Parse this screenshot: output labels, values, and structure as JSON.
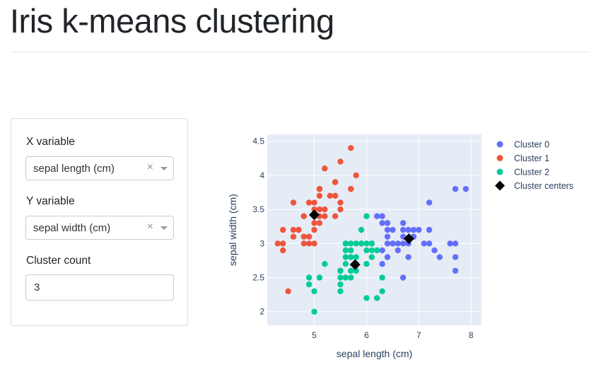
{
  "page": {
    "title": "Iris k-means clustering"
  },
  "controls": {
    "x_label": "X variable",
    "x_value": "sepal length (cm)",
    "y_label": "Y variable",
    "y_value": "sepal width (cm)",
    "clear_glyph": "×",
    "count_label": "Cluster count",
    "count_value": "3"
  },
  "chart_data": {
    "type": "scatter",
    "xlabel": "sepal length (cm)",
    "ylabel": "sepal width (cm)",
    "xlim": [
      4.1,
      8.2
    ],
    "ylim": [
      1.8,
      4.6
    ],
    "xticks": [
      5,
      6,
      7,
      8
    ],
    "yticks": [
      2,
      2.5,
      3,
      3.5,
      4,
      4.5
    ],
    "grid": true,
    "legend_position": "right",
    "plot_bgcolor": "#e5ecf6",
    "series": [
      {
        "name": "Cluster 0",
        "color": "#636efa",
        "points": [
          [
            6.2,
            3.4
          ],
          [
            6.3,
            3.4
          ],
          [
            6.4,
            3.3
          ],
          [
            6.7,
            3.3
          ],
          [
            6.3,
            3.3
          ],
          [
            6.5,
            3.2
          ],
          [
            6.4,
            3.2
          ],
          [
            6.9,
            3.2
          ],
          [
            6.8,
            3.2
          ],
          [
            7.0,
            3.2
          ],
          [
            7.2,
            3.2
          ],
          [
            6.9,
            3.1
          ],
          [
            6.7,
            3.1
          ],
          [
            6.4,
            3.1
          ],
          [
            6.6,
            3.0
          ],
          [
            6.5,
            3.0
          ],
          [
            6.7,
            3.0
          ],
          [
            6.8,
            3.0
          ],
          [
            7.1,
            3.0
          ],
          [
            7.2,
            3.0
          ],
          [
            7.6,
            3.0
          ],
          [
            7.7,
            3.0
          ],
          [
            6.1,
            3.0
          ],
          [
            6.4,
            3.0
          ],
          [
            6.3,
            2.9
          ],
          [
            6.6,
            2.9
          ],
          [
            7.3,
            2.9
          ],
          [
            6.4,
            2.8
          ],
          [
            6.8,
            2.8
          ],
          [
            7.7,
            2.8
          ],
          [
            7.4,
            2.8
          ],
          [
            6.3,
            2.7
          ],
          [
            6.7,
            2.5
          ],
          [
            7.7,
            2.6
          ],
          [
            7.2,
            3.6
          ],
          [
            7.7,
            3.8
          ],
          [
            7.9,
            3.8
          ],
          [
            6.7,
            3.2
          ],
          [
            6.5,
            3.0
          ],
          [
            6.9,
            3.1
          ]
        ]
      },
      {
        "name": "Cluster 1",
        "color": "#ef553b",
        "points": [
          [
            5.7,
            4.4
          ],
          [
            5.8,
            4.0
          ],
          [
            5.2,
            4.1
          ],
          [
            5.5,
            4.2
          ],
          [
            5.4,
            3.9
          ],
          [
            5.7,
            3.8
          ],
          [
            5.1,
            3.8
          ],
          [
            5.3,
            3.7
          ],
          [
            5.2,
            3.5
          ],
          [
            5.4,
            3.7
          ],
          [
            5.1,
            3.7
          ],
          [
            5.1,
            3.5
          ],
          [
            5.0,
            3.6
          ],
          [
            5.4,
            3.4
          ],
          [
            5.1,
            3.3
          ],
          [
            4.6,
            3.6
          ],
          [
            4.8,
            3.4
          ],
          [
            5.0,
            3.5
          ],
          [
            4.9,
            3.6
          ],
          [
            5.0,
            3.4
          ],
          [
            4.7,
            3.2
          ],
          [
            4.6,
            3.1
          ],
          [
            4.4,
            3.0
          ],
          [
            4.3,
            3.0
          ],
          [
            4.4,
            2.9
          ],
          [
            4.8,
            3.0
          ],
          [
            4.9,
            3.0
          ],
          [
            4.8,
            3.1
          ],
          [
            4.9,
            3.1
          ],
          [
            5.0,
            3.0
          ],
          [
            4.6,
            3.2
          ],
          [
            5.0,
            3.2
          ],
          [
            5.1,
            3.4
          ],
          [
            5.2,
            3.4
          ],
          [
            5.5,
            3.5
          ],
          [
            5.4,
            3.9
          ],
          [
            5.7,
            3.8
          ],
          [
            4.4,
            3.2
          ],
          [
            4.5,
            2.3
          ],
          [
            4.8,
            3.4
          ],
          [
            5.0,
            3.3
          ],
          [
            5.5,
            3.6
          ],
          [
            4.7,
            3.2
          ],
          [
            5.1,
            3.8
          ]
        ]
      },
      {
        "name": "Cluster 2",
        "color": "#00cc96",
        "points": [
          [
            4.9,
            2.5
          ],
          [
            5.0,
            2.3
          ],
          [
            4.9,
            2.4
          ],
          [
            5.0,
            2.0
          ],
          [
            5.1,
            2.5
          ],
          [
            5.2,
            2.7
          ],
          [
            5.5,
            2.3
          ],
          [
            5.5,
            2.4
          ],
          [
            5.5,
            2.5
          ],
          [
            5.5,
            2.6
          ],
          [
            5.6,
            2.5
          ],
          [
            5.7,
            2.5
          ],
          [
            5.5,
            2.6
          ],
          [
            5.6,
            2.7
          ],
          [
            5.7,
            2.6
          ],
          [
            5.7,
            2.8
          ],
          [
            5.8,
            2.7
          ],
          [
            5.8,
            2.6
          ],
          [
            5.6,
            2.8
          ],
          [
            5.6,
            2.9
          ],
          [
            5.7,
            2.9
          ],
          [
            5.8,
            2.8
          ],
          [
            5.6,
            3.0
          ],
          [
            5.7,
            3.0
          ],
          [
            5.9,
            3.0
          ],
          [
            6.0,
            3.0
          ],
          [
            5.9,
            3.2
          ],
          [
            5.8,
            3.0
          ],
          [
            6.0,
            2.7
          ],
          [
            6.1,
            2.8
          ],
          [
            6.2,
            2.9
          ],
          [
            6.1,
            2.9
          ],
          [
            6.0,
            2.9
          ],
          [
            6.0,
            2.2
          ],
          [
            6.2,
            2.2
          ],
          [
            6.3,
            2.3
          ],
          [
            6.3,
            2.5
          ],
          [
            5.6,
            3.0
          ],
          [
            5.8,
            2.7
          ],
          [
            6.0,
            3.4
          ],
          [
            6.1,
            3.0
          ],
          [
            5.9,
            3.0
          ],
          [
            5.7,
            2.8
          ],
          [
            5.5,
            2.6
          ]
        ]
      },
      {
        "name": "Cluster centers",
        "color": "#000000",
        "marker": "diamond",
        "points": [
          [
            5.0,
            3.42
          ],
          [
            5.78,
            2.69
          ],
          [
            6.81,
            3.07
          ]
        ]
      }
    ]
  }
}
